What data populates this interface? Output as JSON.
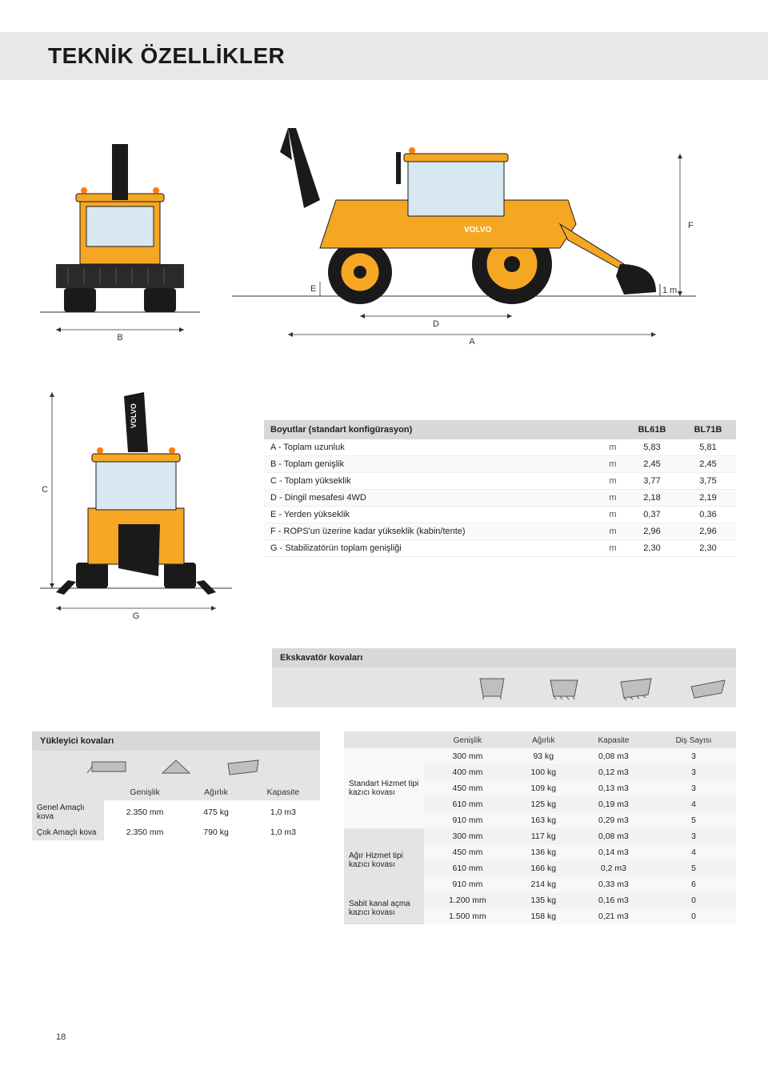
{
  "title": "TEKNİK ÖZELLİKLER",
  "dim_labels": {
    "A": "A",
    "B": "B",
    "C": "C",
    "D": "D",
    "E": "E",
    "F": "F",
    "G": "G",
    "oneM": "1 m"
  },
  "colors": {
    "machine_yellow": "#f5a623",
    "machine_dark": "#1a1a1a",
    "band_grey": "#e8e8e8",
    "table_head": "#d8d8d8"
  },
  "spec_table": {
    "title": "Boyutlar (standart konfigürasyon)",
    "model1": "BL61B",
    "model2": "BL71B",
    "rows": [
      {
        "label": "A - Toplam uzunluk",
        "unit": "m",
        "v1": "5,83",
        "v2": "5,81"
      },
      {
        "label": "B - Toplam genişlik",
        "unit": "m",
        "v1": "2,45",
        "v2": "2,45"
      },
      {
        "label": "C - Toplam yükseklik",
        "unit": "m",
        "v1": "3,77",
        "v2": "3,75"
      },
      {
        "label": "D - Dingil mesafesi 4WD",
        "unit": "m",
        "v1": "2,18",
        "v2": "2,19"
      },
      {
        "label": "E - Yerden yükseklik",
        "unit": "m",
        "v1": "0,37",
        "v2": "0,36"
      },
      {
        "label": "F - ROPS'un üzerine kadar yükseklik (kabin/tente)",
        "unit": "m",
        "v1": "2,96",
        "v2": "2,96"
      },
      {
        "label": "G - Stabilizatörün toplam genişliği",
        "unit": "m",
        "v1": "2,30",
        "v2": "2,30"
      }
    ]
  },
  "excavator_buckets": {
    "title": "Ekskavatör kovaları",
    "columns": [
      "Genişlik",
      "Ağırlık",
      "Kapasite",
      "Diş Sayısı"
    ],
    "groups": [
      {
        "label": "Standart Hizmet tipi kazıcı kovası",
        "rows": [
          {
            "w": "300 mm",
            "kg": "93 kg",
            "cap": "0,08 m3",
            "teeth": "3"
          },
          {
            "w": "400 mm",
            "kg": "100 kg",
            "cap": "0,12 m3",
            "teeth": "3"
          },
          {
            "w": "450 mm",
            "kg": "109 kg",
            "cap": "0,13 m3",
            "teeth": "3"
          },
          {
            "w": "610 mm",
            "kg": "125 kg",
            "cap": "0,19 m3",
            "teeth": "4"
          },
          {
            "w": "910 mm",
            "kg": "163 kg",
            "cap": "0,29 m3",
            "teeth": "5"
          }
        ]
      },
      {
        "label": "Ağır Hizmet tipi kazıcı kovası",
        "rows": [
          {
            "w": "300 mm",
            "kg": "117 kg",
            "cap": "0,08 m3",
            "teeth": "3"
          },
          {
            "w": "450 mm",
            "kg": "136 kg",
            "cap": "0,14 m3",
            "teeth": "4"
          },
          {
            "w": "610 mm",
            "kg": "166 kg",
            "cap": "0,2 m3",
            "teeth": "5"
          },
          {
            "w": "910 mm",
            "kg": "214 kg",
            "cap": "0,33 m3",
            "teeth": "6"
          }
        ]
      },
      {
        "label": "Sabit kanal açma kazıcı kovası",
        "rows": [
          {
            "w": "1.200 mm",
            "kg": "135 kg",
            "cap": "0,16 m3",
            "teeth": "0"
          },
          {
            "w": "1.500 mm",
            "kg": "158 kg",
            "cap": "0,21 m3",
            "teeth": "0"
          }
        ]
      }
    ]
  },
  "loader_buckets": {
    "title": "Yükleyici kovaları",
    "columns": [
      "Genişlik",
      "Ağırlık",
      "Kapasite"
    ],
    "rows": [
      {
        "label": "Genel Amaçlı kova",
        "w": "2.350 mm",
        "kg": "475 kg",
        "cap": "1,0 m3"
      },
      {
        "label": "Çok Amaçlı kova",
        "w": "2.350 mm",
        "kg": "790 kg",
        "cap": "1,0 m3"
      }
    ]
  },
  "page_number": "18"
}
